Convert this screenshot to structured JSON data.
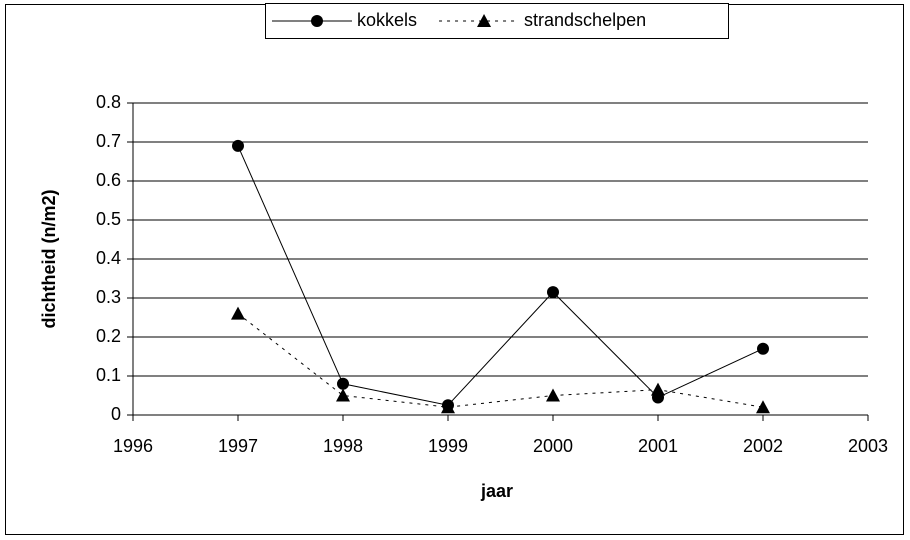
{
  "chart_data": {
    "type": "line",
    "x_label": "jaar",
    "y_label": "dichtheid (n/m2)",
    "x": [
      1997,
      1998,
      1999,
      2000,
      2001,
      2002
    ],
    "series": [
      {
        "name": "kokkels",
        "color": "#000000",
        "marker": "circle",
        "dashed": false,
        "values": [
          0.69,
          0.08,
          0.025,
          0.315,
          0.045,
          0.17
        ]
      },
      {
        "name": "strandschelpen",
        "color": "#000000",
        "marker": "triangle",
        "dashed": true,
        "values": [
          0.26,
          0.05,
          0.02,
          0.05,
          0.065,
          0.02
        ]
      }
    ],
    "xlim": [
      1996,
      2003
    ],
    "xticks": [
      1996,
      1997,
      1998,
      1999,
      2000,
      2001,
      2002,
      2003
    ],
    "ylim": [
      0,
      0.8
    ],
    "yticks": [
      0,
      0.1,
      0.2,
      0.3,
      0.4,
      0.5,
      0.6,
      0.7,
      0.8
    ],
    "grid": true,
    "legend": "top"
  }
}
